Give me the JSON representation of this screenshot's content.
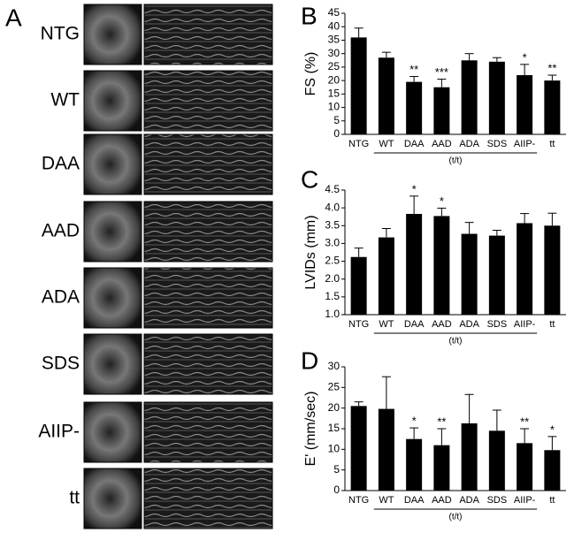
{
  "panel_a": {
    "label": "A",
    "rows": [
      "NTG",
      "WT",
      "DAA",
      "AAD",
      "ADA",
      "SDS",
      "AIIP-",
      "tt"
    ]
  },
  "chart_data": [
    {
      "type": "bar",
      "panel_label": "B",
      "y_label": "FS (%)",
      "group_label": "(t/t)",
      "categories": [
        "NTG",
        "WT",
        "DAA",
        "AAD",
        "ADA",
        "SDS",
        "AIIP-",
        "tt"
      ],
      "values": [
        36,
        28.5,
        19.5,
        17.5,
        27.5,
        27,
        22,
        20
      ],
      "errors": [
        3.5,
        2,
        2,
        3,
        2.5,
        1.5,
        4,
        2
      ],
      "significance": [
        null,
        null,
        "**",
        "***",
        null,
        null,
        "*",
        "**"
      ],
      "color": "#000000",
      "ylim": [
        0,
        45
      ],
      "yticks": [
        0,
        5,
        10,
        15,
        20,
        25,
        30,
        35,
        40,
        45
      ]
    },
    {
      "type": "bar",
      "panel_label": "C",
      "y_label": "LVIDs (mm)",
      "group_label": "(t/t)",
      "categories": [
        "NTG",
        "WT",
        "DAA",
        "AAD",
        "ADA",
        "SDS",
        "AIIP-",
        "tt"
      ],
      "values": [
        2.62,
        3.17,
        3.83,
        3.77,
        3.27,
        3.22,
        3.57,
        3.5
      ],
      "errors": [
        0.25,
        0.25,
        0.5,
        0.22,
        0.32,
        0.15,
        0.27,
        0.35
      ],
      "significance": [
        null,
        null,
        "*",
        "*",
        null,
        null,
        null,
        null
      ],
      "color": "#000000",
      "ylim": [
        1,
        4.5
      ],
      "yticks": [
        {
          "value": 1,
          "label": "1.0"
        },
        1.5,
        {
          "value": 2,
          "label": "2.0"
        },
        2.5,
        {
          "value": 3,
          "label": "3.0"
        },
        3.5,
        {
          "value": 4,
          "label": "4.0"
        },
        4.5
      ]
    },
    {
      "type": "bar",
      "panel_label": "D",
      "y_label": "E' (mm/sec)",
      "group_label": "(t/t)",
      "categories": [
        "NTG",
        "WT",
        "DAA",
        "AAD",
        "ADA",
        "SDS",
        "AIIP-",
        "tt"
      ],
      "values": [
        20.5,
        19.8,
        12.5,
        11,
        16.3,
        14.5,
        11.5,
        9.8
      ],
      "errors": [
        1,
        7.8,
        2.7,
        4,
        7,
        5,
        3.5,
        3.3
      ],
      "significance": [
        null,
        null,
        "*",
        "**",
        null,
        null,
        "**",
        "*"
      ],
      "color": "#000000",
      "ylim": [
        0,
        30
      ],
      "yticks": [
        0,
        5,
        10,
        15,
        20,
        25,
        30
      ]
    }
  ]
}
